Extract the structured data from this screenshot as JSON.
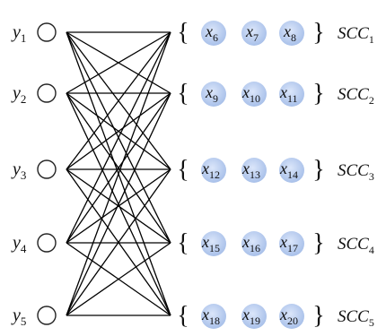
{
  "left_nodes": [
    {
      "name": "y",
      "sub": "1"
    },
    {
      "name": "y",
      "sub": "2"
    },
    {
      "name": "y",
      "sub": "3"
    },
    {
      "name": "y",
      "sub": "4"
    },
    {
      "name": "y",
      "sub": "5"
    }
  ],
  "groups": [
    {
      "label": "SCC",
      "label_sub": "1",
      "items": [
        {
          "name": "x",
          "sub": "6"
        },
        {
          "name": "x",
          "sub": "7"
        },
        {
          "name": "x",
          "sub": "8"
        }
      ]
    },
    {
      "label": "SCC",
      "label_sub": "2",
      "items": [
        {
          "name": "x",
          "sub": "9"
        },
        {
          "name": "x",
          "sub": "10"
        },
        {
          "name": "x",
          "sub": "11"
        }
      ]
    },
    {
      "label": "SCC",
      "label_sub": "3",
      "items": [
        {
          "name": "x",
          "sub": "12"
        },
        {
          "name": "x",
          "sub": "13"
        },
        {
          "name": "x",
          "sub": "14"
        }
      ]
    },
    {
      "label": "SCC",
      "label_sub": "4",
      "items": [
        {
          "name": "x",
          "sub": "15"
        },
        {
          "name": "x",
          "sub": "16"
        },
        {
          "name": "x",
          "sub": "17"
        }
      ]
    },
    {
      "label": "SCC",
      "label_sub": "5",
      "items": [
        {
          "name": "x",
          "sub": "18"
        },
        {
          "name": "x",
          "sub": "19"
        },
        {
          "name": "x",
          "sub": "20"
        }
      ]
    }
  ],
  "colors": {
    "edge": "#000000",
    "left_node_fill": "#ffffff",
    "left_node_stroke": "#222222",
    "x_node_fill_center": "#dbe6fa",
    "x_node_fill_edge": "#a4bde8",
    "text": "#111111"
  }
}
